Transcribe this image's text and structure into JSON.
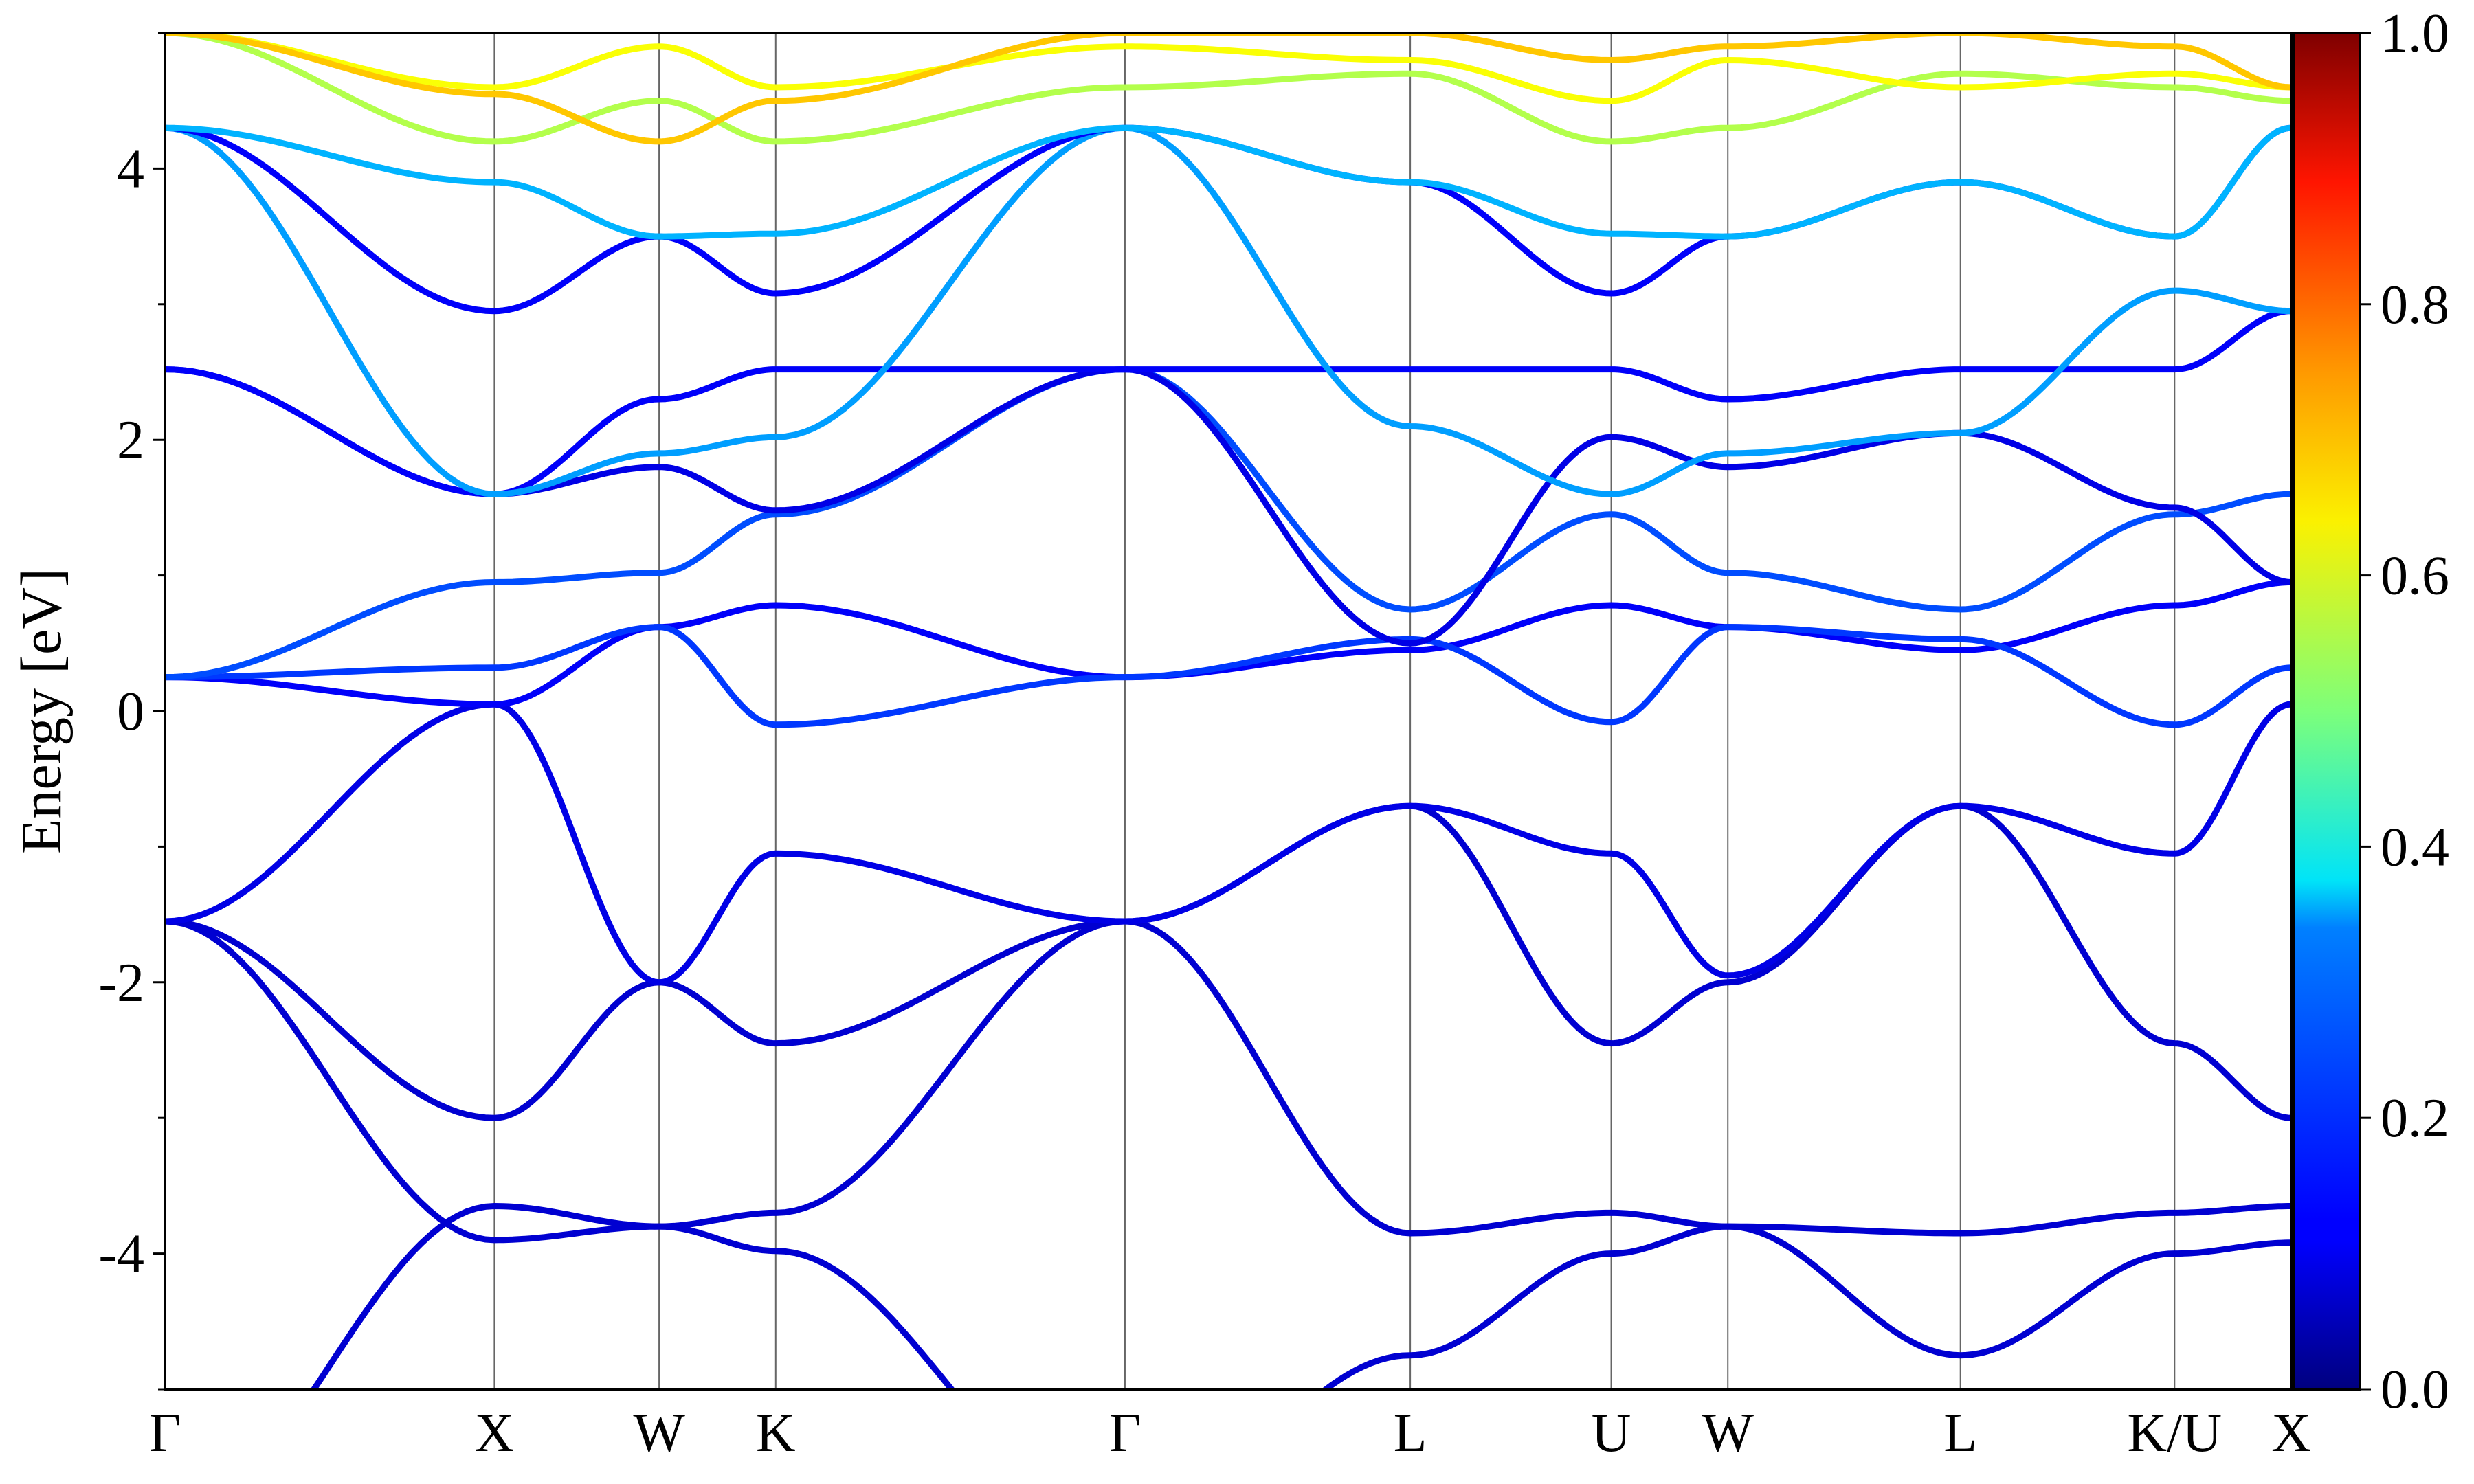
{
  "chart_data": {
    "type": "line",
    "title": "",
    "ylabel": "Energy [eV]",
    "xlabel": "",
    "ylim": [
      -5,
      5
    ],
    "grid": false,
    "legend": "none",
    "kpath": {
      "labels": [
        "Γ",
        "X",
        "W",
        "K",
        "Γ",
        "L",
        "U",
        "W",
        "L",
        "K/U",
        "X"
      ],
      "positions": [
        0,
        1.0,
        1.5,
        1.854,
        2.914,
        3.78,
        4.39,
        4.744,
        5.45,
        6.1,
        6.454
      ]
    },
    "yticks": [
      {
        "value": -4,
        "label": "-4"
      },
      {
        "value": -2,
        "label": "-2"
      },
      {
        "value": 0,
        "label": "0"
      },
      {
        "value": 2,
        "label": "2"
      },
      {
        "value": 4,
        "label": "4"
      }
    ],
    "colorbar": {
      "colormap": "jet",
      "range": [
        0.0,
        1.0
      ],
      "ticks": [
        {
          "value": 0.0,
          "label": "0.0"
        },
        {
          "value": 0.2,
          "label": "0.2"
        },
        {
          "value": 0.4,
          "label": "0.4"
        },
        {
          "value": 0.6,
          "label": "0.6"
        },
        {
          "value": 0.8,
          "label": "0.8"
        },
        {
          "value": 1.0,
          "label": "1.0"
        }
      ]
    },
    "series": [
      {
        "weight": 0.08,
        "values": [
          -1.55,
          -3.9,
          -3.8,
          -3.7,
          -1.55,
          -3.85,
          -3.7,
          -3.8,
          -3.85,
          -3.7,
          -3.65
        ]
      },
      {
        "weight": 0.08,
        "values": [
          -6.0,
          -3.65,
          -3.8,
          -3.98,
          -6.0,
          -4.75,
          -4.0,
          -3.8,
          -4.75,
          -4.0,
          -3.92
        ]
      },
      {
        "weight": 0.08,
        "values": [
          -1.55,
          -3.0,
          -2.0,
          -2.45,
          -1.55,
          -0.7,
          -2.45,
          -2.0,
          -0.7,
          -2.45,
          -3.0
        ]
      },
      {
        "weight": 0.1,
        "values": [
          -1.55,
          0.05,
          -2.0,
          -1.05,
          -1.55,
          -0.7,
          -1.05,
          -1.95,
          -0.7,
          -1.05,
          0.05
        ]
      },
      {
        "weight": 0.12,
        "values": [
          0.25,
          0.05,
          0.62,
          0.78,
          0.25,
          0.45,
          0.78,
          0.62,
          0.45,
          0.78,
          0.95
        ]
      },
      {
        "weight": 0.18,
        "values": [
          0.25,
          0.32,
          0.62,
          -0.1,
          0.25,
          0.53,
          -0.08,
          0.62,
          0.53,
          -0.1,
          0.32
        ]
      },
      {
        "weight": 0.2,
        "values": [
          0.25,
          0.95,
          1.02,
          1.45,
          2.52,
          0.75,
          1.45,
          1.02,
          0.75,
          1.45,
          1.6
        ]
      },
      {
        "weight": 0.1,
        "values": [
          2.52,
          1.6,
          1.8,
          1.48,
          2.52,
          0.5,
          2.02,
          1.8,
          2.05,
          1.5,
          0.95
        ]
      },
      {
        "weight": 0.12,
        "values": [
          2.52,
          1.6,
          2.3,
          2.52,
          2.52,
          2.52,
          2.52,
          2.3,
          2.52,
          2.52,
          2.95
        ]
      },
      {
        "weight": 0.28,
        "values": [
          4.3,
          1.6,
          1.9,
          2.02,
          4.3,
          2.1,
          1.6,
          1.9,
          2.05,
          3.1,
          2.95
        ]
      },
      {
        "weight": 0.12,
        "values": [
          4.3,
          2.95,
          3.5,
          3.08,
          4.3,
          3.9,
          3.08,
          3.5,
          3.9,
          3.5,
          4.3
        ]
      },
      {
        "weight": 0.3,
        "values": [
          4.3,
          3.9,
          3.5,
          3.52,
          4.3,
          3.9,
          3.52,
          3.5,
          3.9,
          3.5,
          4.3
        ]
      },
      {
        "weight": 0.55,
        "values": [
          5.0,
          4.2,
          4.5,
          4.2,
          4.6,
          4.7,
          4.2,
          4.3,
          4.7,
          4.6,
          4.5
        ]
      },
      {
        "weight": 0.62,
        "values": [
          5.0,
          4.6,
          4.9,
          4.6,
          4.9,
          4.8,
          4.5,
          4.8,
          4.6,
          4.7,
          4.6
        ]
      },
      {
        "weight": 0.68,
        "values": [
          5.0,
          4.55,
          4.2,
          4.5,
          5.0,
          5.0,
          4.8,
          4.9,
          5.0,
          4.9,
          4.6
        ]
      }
    ]
  }
}
